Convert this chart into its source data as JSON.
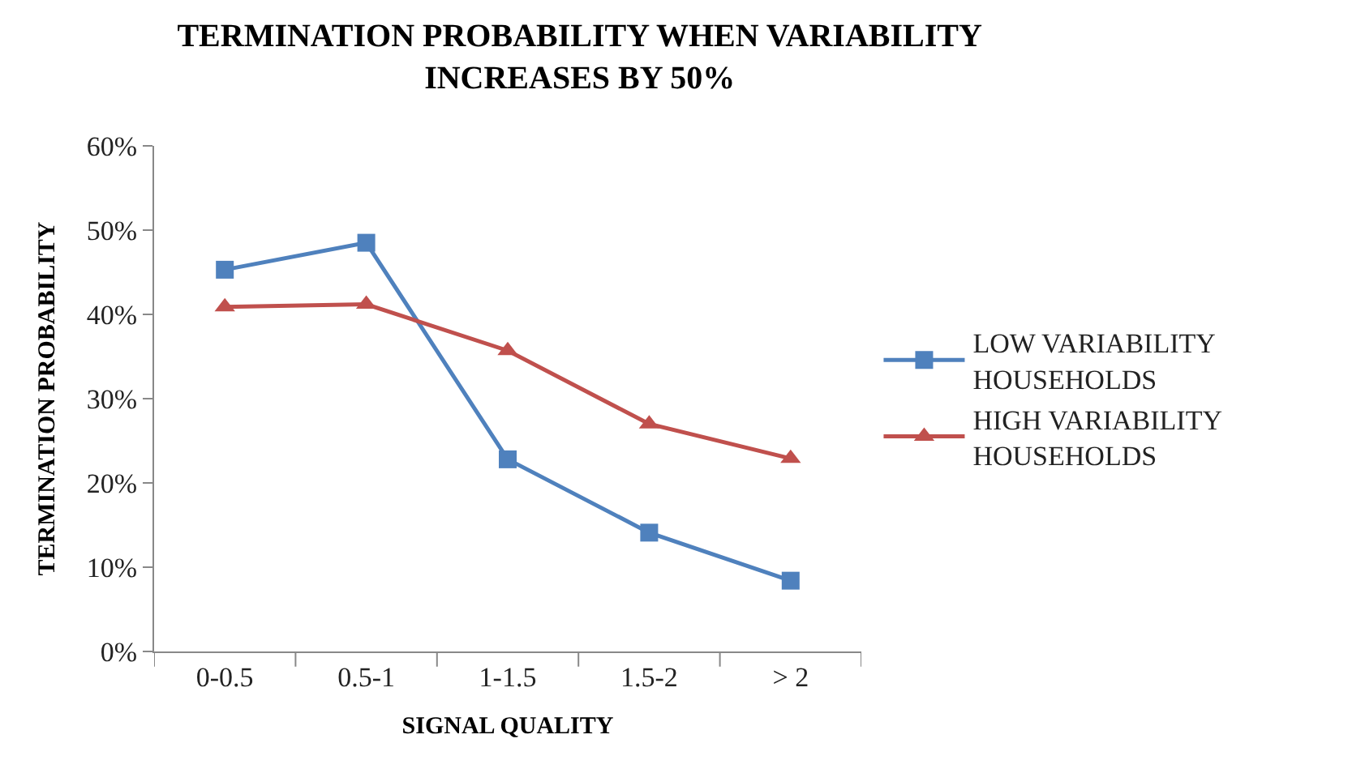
{
  "chart_data": {
    "type": "line",
    "title": "TERMINATION PROBABILITY WHEN VARIABILITY INCREASES BY 50%",
    "xlabel": "SIGNAL QUALITY",
    "ylabel": "TERMINATION PROBABILITY",
    "categories": [
      "0-0.5",
      "0.5-1",
      "1-1.5",
      "1.5-2",
      "> 2"
    ],
    "series": [
      {
        "name": "LOW VARIABILITY HOUSEHOLDS",
        "color": "#4f81bd",
        "marker": "square",
        "values": [
          45.3,
          48.5,
          22.8,
          14.1,
          8.4
        ]
      },
      {
        "name": "HIGH VARIABILITY HOUSEHOLDS",
        "color": "#c0504d",
        "marker": "triangle",
        "values": [
          40.9,
          41.2,
          35.7,
          27.0,
          22.9
        ]
      }
    ],
    "ylim": [
      0,
      60
    ],
    "yticks": [
      {
        "value": 0,
        "label": "0%"
      },
      {
        "value": 10,
        "label": "10%"
      },
      {
        "value": 20,
        "label": "20%"
      },
      {
        "value": 30,
        "label": "30%"
      },
      {
        "value": 40,
        "label": "40%"
      },
      {
        "value": 50,
        "label": "50%"
      },
      {
        "value": 60,
        "label": "60%"
      }
    ],
    "legend": "right"
  }
}
